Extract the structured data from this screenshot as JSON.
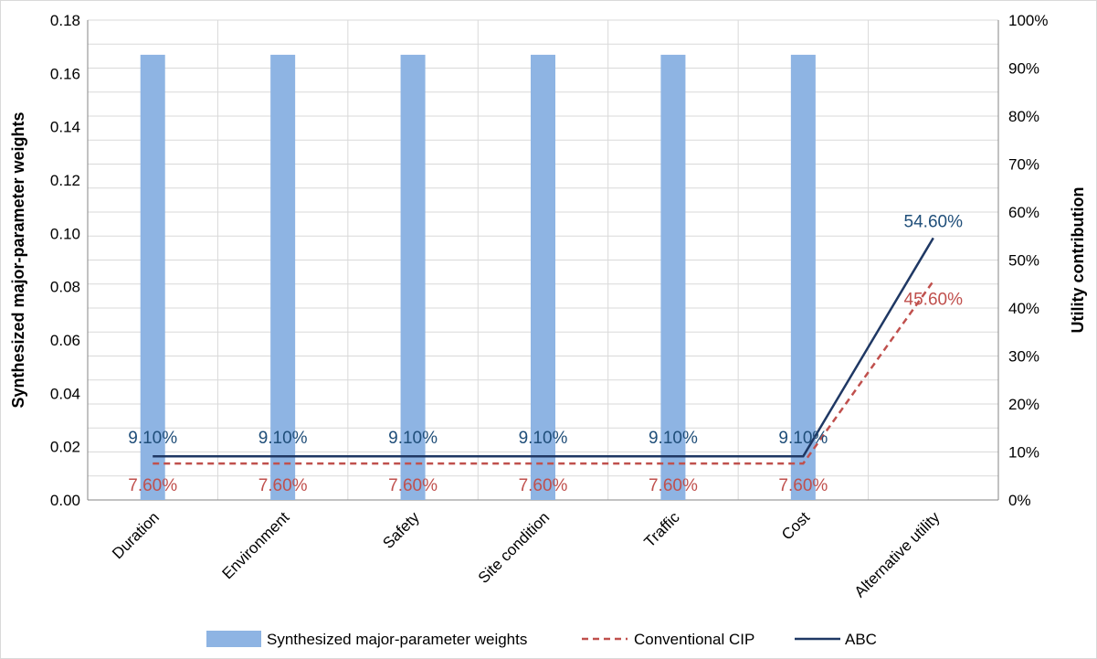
{
  "chart_data": {
    "type": "bar+line",
    "categories": [
      "Duration",
      "Environment",
      "Safety",
      "Site condition",
      "Traffic",
      "Cost",
      "Alternative utility"
    ],
    "series": [
      {
        "name": "Synthesized major-parameter weights",
        "type": "bar",
        "axis": "left",
        "color": "#8eb4e3",
        "values": [
          0.167,
          0.167,
          0.167,
          0.167,
          0.167,
          0.167,
          null
        ]
      },
      {
        "name": "Conventional CIP",
        "type": "line",
        "style": "dashed",
        "axis": "right",
        "color": "#c0504d",
        "values": [
          7.6,
          7.6,
          7.6,
          7.6,
          7.6,
          7.6,
          45.6
        ],
        "labels": [
          "7.60%",
          "7.60%",
          "7.60%",
          "7.60%",
          "7.60%",
          "7.60%",
          "45.60%"
        ]
      },
      {
        "name": "ABC",
        "type": "line",
        "style": "solid",
        "axis": "right",
        "color": "#1f3864",
        "values": [
          9.1,
          9.1,
          9.1,
          9.1,
          9.1,
          9.1,
          54.6
        ],
        "labels": [
          "9.10%",
          "9.10%",
          "9.10%",
          "9.10%",
          "9.10%",
          "9.10%",
          "54.60%"
        ]
      }
    ],
    "ylabel": "Synthesized major-parameter weights",
    "y2label": "Utility contribution",
    "ylim": [
      0,
      0.18
    ],
    "y2lim": [
      0,
      100
    ],
    "yticks": [
      "0.00",
      "0.02",
      "0.04",
      "0.06",
      "0.08",
      "0.10",
      "0.12",
      "0.14",
      "0.16",
      "0.18"
    ],
    "y2ticks": [
      "0%",
      "10%",
      "20%",
      "30%",
      "40%",
      "50%",
      "60%",
      "70%",
      "80%",
      "90%",
      "100%"
    ],
    "grid": true,
    "legend_position": "bottom"
  }
}
